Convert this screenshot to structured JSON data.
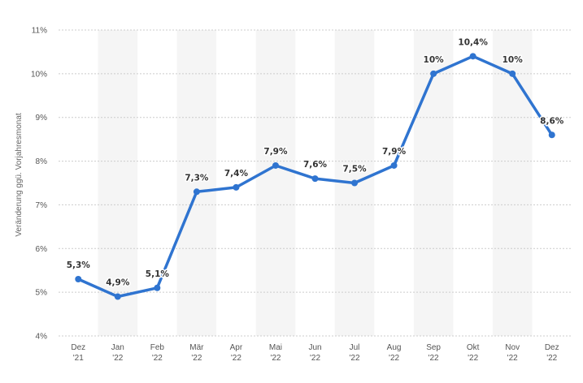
{
  "colors": {
    "line": "#2f74d0",
    "band": "#f5f5f5",
    "grid": "#cccccc",
    "background": "#ffffff"
  },
  "chart_data": {
    "type": "line",
    "title": "",
    "xlabel": "",
    "ylabel": "Veränderung ggü. Vorjahresmonat",
    "ylim": [
      4,
      11
    ],
    "y_ticks": [
      "4%",
      "5%",
      "6%",
      "7%",
      "8%",
      "9%",
      "10%",
      "11%"
    ],
    "grid": true,
    "categories": [
      {
        "line1": "Dez",
        "line2": "'21"
      },
      {
        "line1": "Jan",
        "line2": "'22"
      },
      {
        "line1": "Feb",
        "line2": "'22"
      },
      {
        "line1": "Mär",
        "line2": "'22"
      },
      {
        "line1": "Apr",
        "line2": "'22"
      },
      {
        "line1": "Mai",
        "line2": "'22"
      },
      {
        "line1": "Jun",
        "line2": "'22"
      },
      {
        "line1": "Jul",
        "line2": "'22"
      },
      {
        "line1": "Aug",
        "line2": "'22"
      },
      {
        "line1": "Sep",
        "line2": "'22"
      },
      {
        "line1": "Okt",
        "line2": "'22"
      },
      {
        "line1": "Nov",
        "line2": "'22"
      },
      {
        "line1": "Dez",
        "line2": "'22"
      }
    ],
    "values": [
      5.3,
      4.9,
      5.1,
      7.3,
      7.4,
      7.9,
      7.6,
      7.5,
      7.9,
      10,
      10.4,
      10,
      8.6
    ],
    "labels": [
      "5,3%",
      "4,9%",
      "5,1%",
      "7,3%",
      "7,4%",
      "7,9%",
      "7,6%",
      "7,5%",
      "7,9%",
      "10%",
      "10,4%",
      "10%",
      "8,6%"
    ]
  }
}
